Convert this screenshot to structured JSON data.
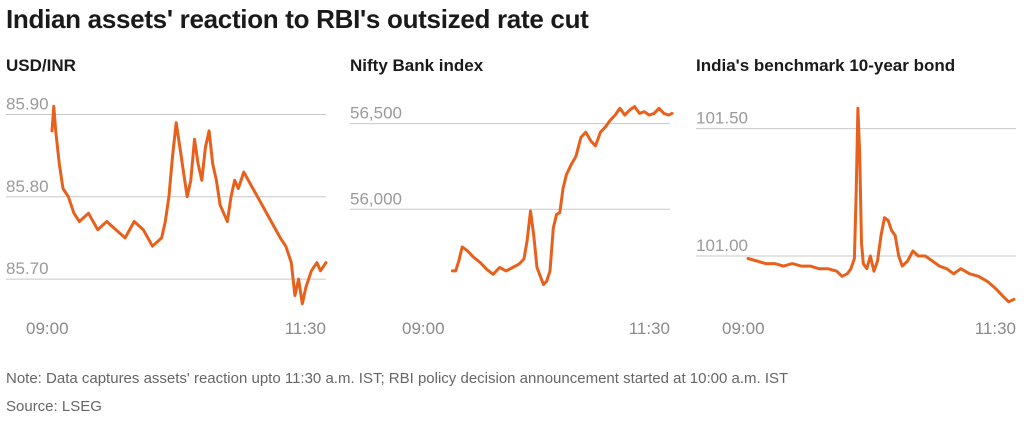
{
  "title": "Indian assets' reaction to RBI's outsized rate cut",
  "note": "Note: Data captures assets' reaction upto 11:30 a.m. IST; RBI policy decision announcement started at 10:00 a.m. IST",
  "source": "Source: LSEG",
  "line_color": "#e8611c",
  "grid_color": "#c8c8c8",
  "chart_data": [
    {
      "type": "line",
      "title": "USD/INR",
      "x_range": [
        "09:00",
        "11:30"
      ],
      "x_ticks": [
        "09:00",
        "11:30"
      ],
      "y_ticks": [
        {
          "value": 85.9,
          "label": "85.90"
        },
        {
          "value": 85.8,
          "label": "85.80"
        },
        {
          "value": 85.7,
          "label": "85.70"
        }
      ],
      "ylim": [
        85.66,
        85.92
      ],
      "grid": true,
      "series": [
        {
          "x": [
            "09:00",
            "09:01",
            "09:02",
            "09:04",
            "09:06",
            "09:09",
            "09:12",
            "09:15",
            "09:20",
            "09:25",
            "09:30",
            "09:35",
            "09:40",
            "09:45",
            "09:50",
            "09:55",
            "10:00",
            "10:02",
            "10:04",
            "10:06",
            "10:08",
            "10:10",
            "10:12",
            "10:14",
            "10:16",
            "10:18",
            "10:20",
            "10:22",
            "10:24",
            "10:26",
            "10:28",
            "10:30",
            "10:32",
            "10:34",
            "10:36",
            "10:38",
            "10:40",
            "10:42",
            "10:45",
            "10:50",
            "10:55",
            "11:00",
            "11:05",
            "11:08",
            "11:11",
            "11:13",
            "11:15",
            "11:17",
            "11:19",
            "11:22",
            "11:25",
            "11:27",
            "11:30"
          ],
          "y": [
            85.88,
            85.91,
            85.88,
            85.84,
            85.81,
            85.8,
            85.78,
            85.77,
            85.78,
            85.76,
            85.77,
            85.76,
            85.75,
            85.77,
            85.76,
            85.74,
            85.75,
            85.77,
            85.8,
            85.85,
            85.89,
            85.86,
            85.83,
            85.8,
            85.82,
            85.87,
            85.84,
            85.82,
            85.86,
            85.88,
            85.84,
            85.82,
            85.79,
            85.78,
            85.77,
            85.8,
            85.82,
            85.81,
            85.83,
            85.81,
            85.79,
            85.77,
            85.75,
            85.74,
            85.72,
            85.68,
            85.7,
            85.67,
            85.69,
            85.71,
            85.72,
            85.71,
            85.72
          ]
        }
      ]
    },
    {
      "type": "line",
      "title": "Nifty Bank index",
      "x_range": [
        "09:00",
        "11:30"
      ],
      "x_ticks": [
        "09:00",
        "11:30"
      ],
      "y_ticks": [
        {
          "value": 56500,
          "label": "56,500"
        },
        {
          "value": 56000,
          "label": "56,000"
        }
      ],
      "ylim": [
        55400,
        56650
      ],
      "grid": true,
      "series": [
        {
          "x": [
            "09:15",
            "09:17",
            "09:19",
            "09:21",
            "09:24",
            "09:28",
            "09:32",
            "09:36",
            "09:40",
            "09:44",
            "09:48",
            "09:52",
            "09:56",
            "09:59",
            "10:01",
            "10:03",
            "10:05",
            "10:07",
            "10:09",
            "10:11",
            "10:13",
            "10:15",
            "10:17",
            "10:19",
            "10:21",
            "10:23",
            "10:25",
            "10:28",
            "10:31",
            "10:34",
            "10:37",
            "10:40",
            "10:43",
            "10:46",
            "10:49",
            "10:52",
            "10:55",
            "10:58",
            "11:01",
            "11:04",
            "11:07",
            "11:10",
            "11:13",
            "11:16",
            "11:19",
            "11:22",
            "11:25",
            "11:28",
            "11:30"
          ],
          "y": [
            55640,
            55640,
            55700,
            55780,
            55760,
            55720,
            55690,
            55650,
            55620,
            55660,
            55640,
            55660,
            55680,
            55710,
            55820,
            55990,
            55850,
            55660,
            55610,
            55560,
            55580,
            55640,
            55890,
            55970,
            55980,
            56120,
            56200,
            56260,
            56310,
            56420,
            56450,
            56400,
            56370,
            56450,
            56480,
            56520,
            56550,
            56590,
            56550,
            56580,
            56600,
            56560,
            56570,
            56550,
            56560,
            56590,
            56560,
            56550,
            56560
          ]
        }
      ]
    },
    {
      "type": "line",
      "title": "India's benchmark 10-year bond",
      "x_range": [
        "09:00",
        "11:30"
      ],
      "x_ticks": [
        "09:00",
        "11:30"
      ],
      "y_ticks": [
        {
          "value": 101.5,
          "label": "101.50"
        },
        {
          "value": 101.0,
          "label": "101.00"
        }
      ],
      "ylim": [
        100.78,
        101.62
      ],
      "grid": true,
      "series": [
        {
          "x": [
            "09:00",
            "09:05",
            "09:10",
            "09:15",
            "09:20",
            "09:25",
            "09:30",
            "09:35",
            "09:40",
            "09:45",
            "09:50",
            "09:53",
            "09:56",
            "09:58",
            "10:00",
            "10:01",
            "10:02",
            "10:03",
            "10:04",
            "10:05",
            "10:07",
            "10:09",
            "10:11",
            "10:13",
            "10:15",
            "10:17",
            "10:19",
            "10:21",
            "10:23",
            "10:25",
            "10:27",
            "10:30",
            "10:33",
            "10:36",
            "10:40",
            "10:44",
            "10:48",
            "10:52",
            "10:56",
            "11:00",
            "11:05",
            "11:10",
            "11:15",
            "11:20",
            "11:24",
            "11:27",
            "11:30"
          ],
          "y": [
            100.99,
            100.98,
            100.97,
            100.97,
            100.96,
            100.97,
            100.96,
            100.96,
            100.95,
            100.95,
            100.94,
            100.92,
            100.93,
            100.95,
            100.99,
            101.25,
            101.58,
            101.4,
            101.05,
            100.97,
            100.95,
            101.0,
            100.94,
            100.98,
            101.08,
            101.15,
            101.14,
            101.1,
            101.08,
            101.0,
            100.96,
            100.98,
            101.02,
            101.0,
            101.0,
            100.98,
            100.96,
            100.95,
            100.93,
            100.95,
            100.93,
            100.92,
            100.9,
            100.87,
            100.84,
            100.82,
            100.83
          ]
        }
      ]
    }
  ]
}
